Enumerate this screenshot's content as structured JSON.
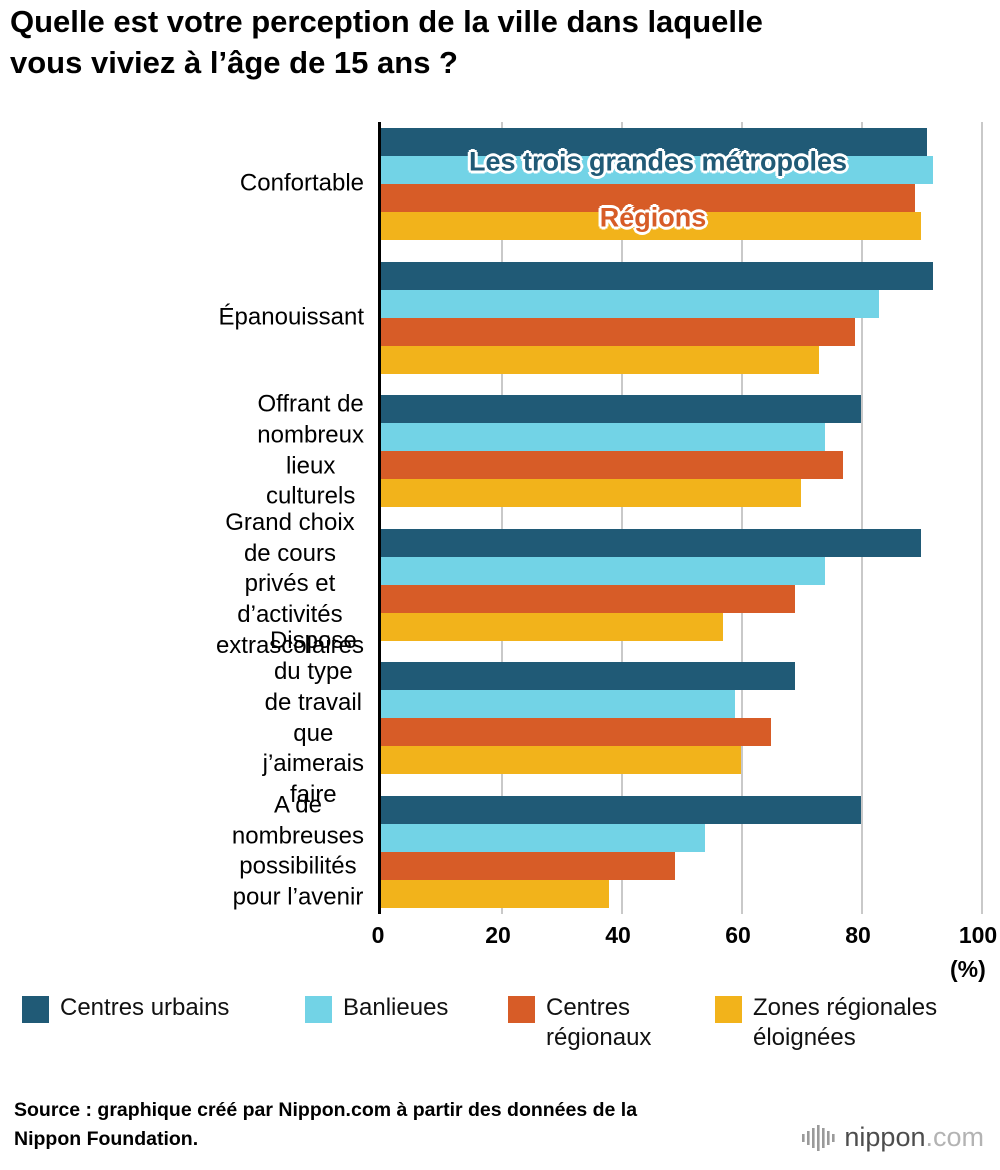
{
  "title": "Quelle est votre perception de la ville dans laquelle\nvous viviez à l’âge de 15 ans ?",
  "chart_data": {
    "type": "bar",
    "orientation": "horizontal",
    "title": "Quelle est votre perception de la ville dans laquelle vous viviez à l’âge de 15 ans ?",
    "categories": [
      "Confortable",
      "Épanouissant",
      "Offrant de nombreux\nlieux culturels",
      "Grand choix de cours\nprivés et d’activités\nextrascolaires",
      "Dispose du type de travail\nque j’aimerais faire",
      "A de nombreuses\npossibilités pour l’avenir"
    ],
    "series": [
      {
        "name": "Centres urbains",
        "color": "#205a76",
        "values": [
          91,
          92,
          80,
          90,
          69,
          80
        ]
      },
      {
        "name": "Banlieues",
        "color": "#72d3e6",
        "values": [
          92,
          83,
          74,
          74,
          59,
          54
        ]
      },
      {
        "name": "Centres régionaux",
        "color": "#d75c27",
        "values": [
          89,
          79,
          77,
          69,
          65,
          49
        ]
      },
      {
        "name": "Zones régionales éloignées",
        "color": "#f2b31b",
        "values": [
          90,
          73,
          70,
          57,
          60,
          38
        ]
      }
    ],
    "xlim": [
      0,
      100
    ],
    "xticks": [
      0,
      20,
      40,
      60,
      80,
      100
    ],
    "x_unit": "(%)",
    "grid": "vertical",
    "legend_position": "bottom",
    "annotations": [
      {
        "name": "annotation-metropoles",
        "text": "Les trois grandes métropoles",
        "color": "#205a76"
      },
      {
        "name": "annotation-regions",
        "text": "Régions",
        "color": "#d75c27"
      }
    ]
  },
  "legend": [
    {
      "label": "Centres urbains",
      "color": "#205a76"
    },
    {
      "label": "Banlieues",
      "color": "#72d3e6"
    },
    {
      "label": "Centres\nrégionaux",
      "color": "#d75c27"
    },
    {
      "label": "Zones régionales\néloignées",
      "color": "#f2b31b"
    }
  ],
  "source": {
    "text": "Source : graphique créé par Nippon.com à partir des données de la\nNippon Foundation."
  },
  "logo": {
    "name": "nippon",
    "tld": ".com"
  }
}
